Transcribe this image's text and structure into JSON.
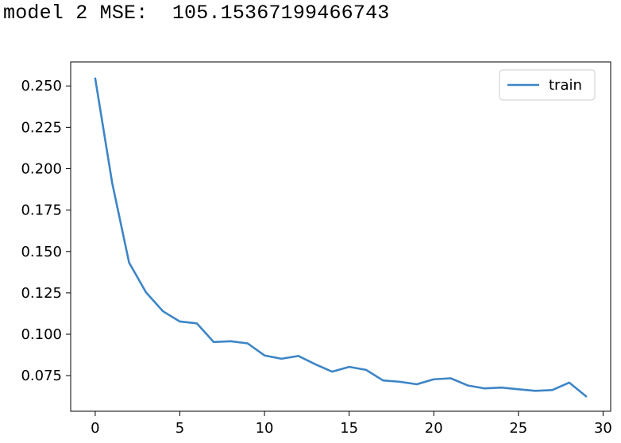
{
  "output": {
    "text": "model 2 MSE:  105.15367199466743"
  },
  "colors": {
    "series": "#3d85c6",
    "axes": "#000000",
    "legend_border": "#cccccc"
  },
  "chart_data": {
    "type": "line",
    "title": "",
    "xlabel": "",
    "ylabel": "",
    "legend_position": "top-right",
    "grid": false,
    "xlim": [
      -1.45,
      30.45
    ],
    "ylim": [
      0.0535,
      0.2645
    ],
    "xticks": [
      0,
      5,
      10,
      15,
      20,
      25,
      30
    ],
    "xtick_labels": [
      "0",
      "5",
      "10",
      "15",
      "20",
      "25",
      "30"
    ],
    "yticks": [
      0.075,
      0.1,
      0.125,
      0.15,
      0.175,
      0.2,
      0.225,
      0.25
    ],
    "ytick_labels": [
      "0.075",
      "0.100",
      "0.125",
      "0.150",
      "0.175",
      "0.200",
      "0.225",
      "0.250"
    ],
    "series": [
      {
        "name": "train",
        "x": [
          0,
          1,
          2,
          3,
          4,
          5,
          6,
          7,
          8,
          9,
          10,
          11,
          12,
          13,
          14,
          15,
          16,
          17,
          18,
          19,
          20,
          21,
          22,
          23,
          24,
          25,
          26,
          27,
          28,
          29
        ],
        "values": [
          0.2545,
          0.1915,
          0.1433,
          0.1253,
          0.1139,
          0.1077,
          0.1066,
          0.0953,
          0.0958,
          0.0945,
          0.0872,
          0.0852,
          0.0869,
          0.0819,
          0.0774,
          0.0803,
          0.0785,
          0.0721,
          0.0713,
          0.0698,
          0.0728,
          0.0734,
          0.0691,
          0.0673,
          0.0678,
          0.0668,
          0.0658,
          0.0663,
          0.0708,
          0.0625
        ]
      }
    ]
  }
}
